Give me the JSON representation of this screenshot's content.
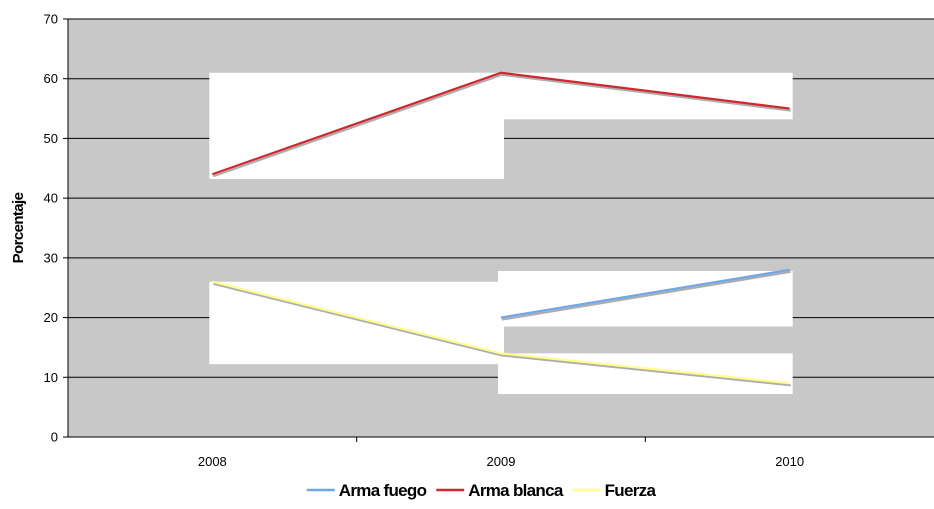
{
  "chart_data": {
    "type": "line",
    "title": "",
    "xlabel": "",
    "ylabel": "Porcentaje",
    "categories": [
      "2008",
      "2009",
      "2010"
    ],
    "ylim": [
      0,
      70
    ],
    "yticks": [
      0,
      10,
      20,
      30,
      40,
      50,
      60,
      70
    ],
    "grid": true,
    "legend_position": "bottom",
    "series": [
      {
        "name": "Arma fuego",
        "values": [
          null,
          20,
          28
        ],
        "color": "#6fa8e6"
      },
      {
        "name": "Arma blanca",
        "values": [
          44,
          61,
          55
        ],
        "color": "#d0262e"
      },
      {
        "name": "Fuerza",
        "values": [
          26,
          14,
          9
        ],
        "color": "#fffe8c"
      }
    ],
    "colors": {
      "plot_background": "#c8c8c8",
      "gridline": "#000000",
      "label_backdrop": "#ffffff"
    }
  }
}
